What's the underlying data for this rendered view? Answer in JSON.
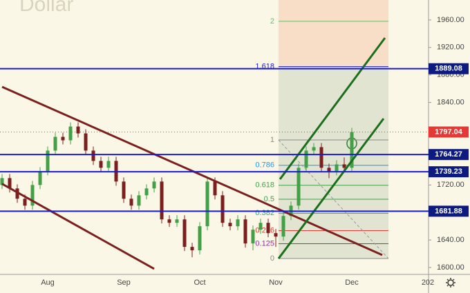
{
  "chart_data": {
    "type": "candlestick",
    "title": "Dollar",
    "categories": [
      null,
      null,
      null,
      null,
      null,
      null,
      "Aug",
      null,
      null,
      null,
      null,
      null,
      null,
      null,
      null,
      null,
      "Sep",
      null,
      null,
      null,
      null,
      null,
      null,
      null,
      null,
      null,
      "Oct",
      null,
      null,
      null,
      null,
      null,
      null,
      null,
      null,
      null,
      "Nov",
      null,
      null,
      null,
      null,
      null,
      null,
      null,
      null,
      null,
      "Dec",
      null,
      null,
      null,
      null,
      null,
      null,
      null,
      null,
      null,
      "202"
    ],
    "open": [
      1720,
      1730,
      1715,
      1700,
      1690,
      1720,
      1740,
      1770,
      1790,
      1785,
      1805,
      1795,
      1770,
      1755,
      1745,
      1755,
      1725,
      1700,
      1690,
      1705,
      1715,
      1725,
      1670,
      1665,
      1670,
      1630,
      1625,
      1660,
      1725,
      1705,
      1665,
      1660,
      1670,
      1635,
      1655,
      1665,
      1650,
      1645,
      1675,
      1690,
      1745,
      1770,
      1775,
      1745,
      1740,
      1750,
      1745,
      null,
      null,
      null,
      null,
      null,
      null,
      null,
      null,
      null,
      null
    ],
    "high": [
      1736,
      1736,
      1721,
      1706,
      1726,
      1746,
      1776,
      1796,
      1796,
      1811,
      1811,
      1801,
      1776,
      1761,
      1761,
      1761,
      1731,
      1706,
      1711,
      1721,
      1731,
      1731,
      1676,
      1676,
      1676,
      1636,
      1666,
      1731,
      1731,
      1711,
      1671,
      1676,
      1676,
      1661,
      1671,
      1671,
      1656,
      1681,
      1696,
      1751,
      1776,
      1781,
      1781,
      1751,
      1756,
      1760,
      1803,
      null,
      null,
      null,
      null,
      null,
      null,
      null,
      null,
      null,
      null
    ],
    "low": [
      1714,
      1709,
      1694,
      1684,
      1684,
      1714,
      1734,
      1764,
      1779,
      1779,
      1789,
      1764,
      1749,
      1739,
      1739,
      1719,
      1694,
      1684,
      1684,
      1699,
      1709,
      1664,
      1659,
      1659,
      1624,
      1615,
      1619,
      1654,
      1699,
      1659,
      1654,
      1654,
      1629,
      1625,
      1649,
      1644,
      1630,
      1639,
      1669,
      1684,
      1739,
      1764,
      1739,
      1730,
      1734,
      1739,
      1739,
      null,
      null,
      null,
      null,
      null,
      null,
      null,
      null,
      null,
      null
    ],
    "close": [
      1730,
      1715,
      1700,
      1690,
      1720,
      1740,
      1770,
      1790,
      1785,
      1805,
      1795,
      1770,
      1755,
      1745,
      1755,
      1725,
      1700,
      1690,
      1705,
      1715,
      1725,
      1670,
      1665,
      1670,
      1630,
      1625,
      1660,
      1725,
      1705,
      1665,
      1660,
      1670,
      1635,
      1655,
      1665,
      1650,
      1645,
      1675,
      1690,
      1745,
      1770,
      1775,
      1745,
      1740,
      1750,
      1745,
      1797,
      null,
      null,
      null,
      null,
      null,
      null,
      null,
      null,
      null,
      null
    ],
    "up_color": "#43a047",
    "down_color": "#7b1f1f",
    "ylim": [
      1590,
      1989
    ],
    "yticks": [
      {
        "value": 1600,
        "label": "1600.00"
      },
      {
        "value": 1640,
        "label": "1640.00"
      },
      {
        "value": 1680,
        "label": "1680.00"
      },
      {
        "value": 1720,
        "label": "1720.00"
      },
      {
        "value": 1760,
        "label": "1760.00"
      },
      {
        "value": 1800,
        "label": "1800.00"
      },
      {
        "value": 1840,
        "label": "1840.00"
      },
      {
        "value": 1880,
        "label": "1880.00"
      },
      {
        "value": 1920,
        "label": "1920.00"
      },
      {
        "value": 1960,
        "label": "1960.00"
      }
    ],
    "price_lines": [
      1889.08,
      1764.27,
      1739.23,
      1681.88
    ],
    "price_line_color": "#1a1ad6",
    "last_price": 1797.04,
    "last_price_color": "#e53935",
    "trendlines": [
      {
        "x": [
          0,
          50
        ],
        "y": [
          1862.7,
          1618.2
        ],
        "color": "#7b1f1f"
      },
      {
        "x": [
          0,
          20
        ],
        "y": [
          1721.6,
          1598.1
        ],
        "color": "#7b1f1f"
      },
      {
        "x": [
          36.36,
          50.18
        ],
        "y": [
          1613,
          1816.6
        ],
        "color": "#1b6e1b"
      },
      {
        "x": [
          36.55,
          50.36
        ],
        "y": [
          1728.4,
          1933.9
        ],
        "color": "#1b6e1b"
      }
    ],
    "fib": {
      "x": [
        36.36,
        50.82
      ],
      "prices": [
        1613,
        1785.5
      ],
      "levels": [
        0,
        0.125,
        0.236,
        0.382,
        0.5,
        0.618,
        0.786,
        1,
        1.618,
        2
      ],
      "colors": [
        "#8a8a8a",
        "#9c27b0",
        "#e53935",
        "#26a69a",
        "#43a047",
        "#43a047",
        "#2196f3",
        "#8a8a8a",
        "#1a1ad6",
        "#66bb6a"
      ]
    }
  }
}
